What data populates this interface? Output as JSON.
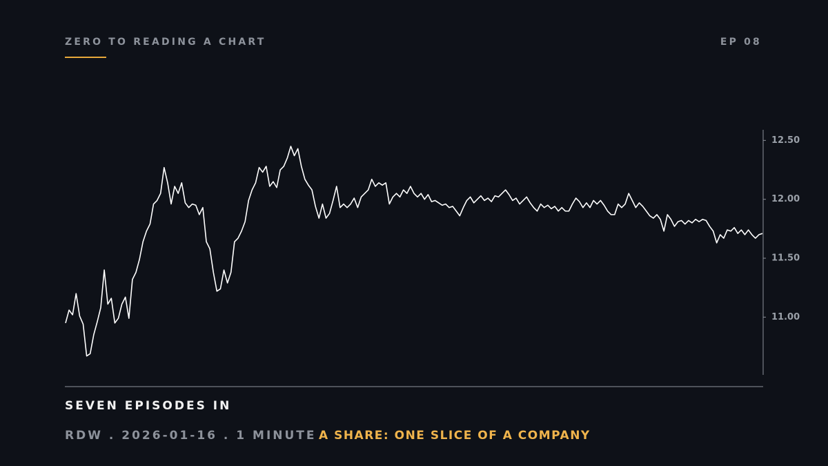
{
  "header": {
    "series_title": "ZERO TO READING A CHART",
    "episode": "EP 08"
  },
  "footer": {
    "headline": "SEVEN EPISODES IN",
    "meta": "RDW . 2026-01-16 . 1 MINUTE",
    "topic": "A SHARE: ONE SLICE OF A COMPANY"
  },
  "chart_data": {
    "type": "line",
    "color": "#ffffff",
    "ylim": [
      10.51,
      12.59
    ],
    "yticks": [
      {
        "value": 11,
        "label": "11.00"
      },
      {
        "value": 11.5,
        "label": "11.50"
      },
      {
        "value": 12,
        "label": "12.00"
      },
      {
        "value": 12.5,
        "label": "12.50"
      }
    ],
    "values": [
      10.95,
      11.06,
      11.02,
      11.2,
      11.01,
      10.94,
      10.67,
      10.69,
      10.85,
      10.96,
      11.08,
      11.4,
      11.11,
      11.16,
      10.95,
      10.99,
      11.11,
      11.17,
      10.99,
      11.32,
      11.38,
      11.49,
      11.64,
      11.73,
      11.79,
      11.96,
      11.99,
      12.05,
      12.27,
      12.14,
      11.96,
      12.11,
      12.05,
      12.14,
      11.97,
      11.93,
      11.96,
      11.95,
      11.87,
      11.93,
      11.64,
      11.58,
      11.38,
      11.22,
      11.24,
      11.4,
      11.29,
      11.38,
      11.64,
      11.67,
      11.73,
      11.81,
      11.99,
      12.08,
      12.14,
      12.27,
      12.23,
      12.28,
      12.11,
      12.15,
      12.1,
      12.25,
      12.28,
      12.35,
      12.45,
      12.37,
      12.43,
      12.28,
      12.17,
      12.12,
      12.08,
      11.94,
      11.84,
      11.96,
      11.84,
      11.88,
      11.99,
      12.11,
      11.93,
      11.96,
      11.93,
      11.96,
      12.01,
      11.93,
      12.02,
      12.05,
      12.08,
      12.17,
      12.11,
      12.14,
      12.12,
      12.14,
      11.96,
      12.02,
      12.05,
      12.02,
      12.08,
      12.05,
      12.11,
      12.05,
      12.02,
      12.05,
      12.0,
      12.04,
      11.98,
      11.99,
      11.97,
      11.95,
      11.96,
      11.93,
      11.94,
      11.9,
      11.86,
      11.93,
      11.99,
      12.02,
      11.97,
      12.0,
      12.03,
      11.99,
      12.01,
      11.98,
      12.03,
      12.02,
      12.05,
      12.08,
      12.04,
      11.99,
      12.01,
      11.96,
      11.99,
      12.02,
      11.97,
      11.93,
      11.9,
      11.96,
      11.93,
      11.95,
      11.92,
      11.94,
      11.9,
      11.93,
      11.9,
      11.9,
      11.96,
      12.01,
      11.98,
      11.93,
      11.97,
      11.93,
      11.99,
      11.96,
      11.99,
      11.95,
      11.9,
      11.87,
      11.87,
      11.96,
      11.93,
      11.96,
      12.05,
      11.99,
      11.93,
      11.97,
      11.94,
      11.9,
      11.86,
      11.84,
      11.87,
      11.83,
      11.73,
      11.87,
      11.83,
      11.77,
      11.81,
      11.82,
      11.79,
      11.82,
      11.8,
      11.83,
      11.81,
      11.83,
      11.82,
      11.77,
      11.73,
      11.63,
      11.7,
      11.67,
      11.74,
      11.73,
      11.76,
      11.71,
      11.74,
      11.7,
      11.74,
      11.7,
      11.67,
      11.7,
      11.71
    ]
  }
}
